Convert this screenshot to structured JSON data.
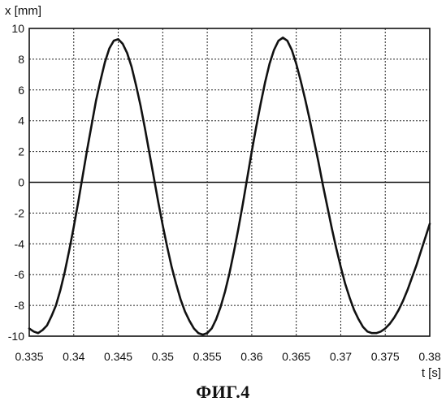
{
  "figure": {
    "caption": "ФИГ.4"
  },
  "chart_data": {
    "type": "line",
    "title": "",
    "xlabel": "t [s]",
    "ylabel": "x [mm]",
    "xlim": [
      0.335,
      0.38
    ],
    "ylim": [
      -10,
      10
    ],
    "grid": true,
    "x_ticks": [
      0.335,
      0.34,
      0.345,
      0.35,
      0.355,
      0.36,
      0.365,
      0.37,
      0.375,
      0.38
    ],
    "x_tick_labels": [
      "0.335",
      "0.34",
      "0.345",
      "0.35",
      "0.355",
      "0.36",
      "0.365",
      "0.37",
      "0.375",
      "0.38"
    ],
    "y_ticks": [
      10,
      8,
      6,
      4,
      2,
      0,
      -2,
      -4,
      -6,
      -8,
      -10
    ],
    "y_tick_labels": [
      "10",
      "8",
      "6",
      "4",
      "2",
      "0",
      "-2",
      "-4",
      "-6",
      "-8",
      "-10"
    ],
    "series": [
      {
        "x": [
          0.335,
          0.3355,
          0.336,
          0.3365,
          0.337,
          0.3375,
          0.338,
          0.3385,
          0.339,
          0.3395,
          0.34,
          0.3405,
          0.341,
          0.3415,
          0.342,
          0.3425,
          0.343,
          0.3435,
          0.344,
          0.3445,
          0.345,
          0.3455,
          0.346,
          0.3465,
          0.347,
          0.3475,
          0.348,
          0.3485,
          0.349,
          0.3495,
          0.35,
          0.3505,
          0.351,
          0.3515,
          0.352,
          0.3525,
          0.353,
          0.3535,
          0.354,
          0.3545,
          0.355,
          0.3555,
          0.356,
          0.3565,
          0.357,
          0.3575,
          0.358,
          0.3585,
          0.359,
          0.3595,
          0.36,
          0.3605,
          0.361,
          0.3615,
          0.362,
          0.3625,
          0.363,
          0.3635,
          0.364,
          0.3645,
          0.365,
          0.3655,
          0.366,
          0.3665,
          0.367,
          0.3675,
          0.368,
          0.3685,
          0.369,
          0.3695,
          0.37,
          0.3705,
          0.371,
          0.3715,
          0.372,
          0.3725,
          0.373,
          0.3735,
          0.374,
          0.3745,
          0.375,
          0.3755,
          0.376,
          0.3765,
          0.377,
          0.3775,
          0.378,
          0.3785,
          0.379,
          0.3795,
          0.38
        ],
        "y": [
          -9.5,
          -9.7,
          -9.8,
          -9.6,
          -9.3,
          -8.7,
          -8.0,
          -7.0,
          -5.8,
          -4.4,
          -2.9,
          -1.3,
          0.4,
          2.1,
          3.7,
          5.3,
          6.6,
          7.8,
          8.7,
          9.2,
          9.3,
          9.0,
          8.4,
          7.5,
          6.3,
          5.0,
          3.5,
          1.9,
          0.3,
          -1.3,
          -2.8,
          -4.2,
          -5.5,
          -6.6,
          -7.6,
          -8.4,
          -9.0,
          -9.5,
          -9.8,
          -9.9,
          -9.8,
          -9.5,
          -8.9,
          -8.1,
          -7.1,
          -5.9,
          -4.5,
          -3.0,
          -1.4,
          0.3,
          2.0,
          3.6,
          5.1,
          6.5,
          7.7,
          8.6,
          9.2,
          9.4,
          9.2,
          8.6,
          7.7,
          6.6,
          5.4,
          4.1,
          2.7,
          1.3,
          -0.2,
          -1.6,
          -3.0,
          -4.3,
          -5.5,
          -6.6,
          -7.5,
          -8.3,
          -8.9,
          -9.4,
          -9.7,
          -9.8,
          -9.8,
          -9.7,
          -9.5,
          -9.2,
          -8.8,
          -8.3,
          -7.7,
          -7.0,
          -6.2,
          -5.4,
          -4.5,
          -3.6,
          -2.7
        ]
      }
    ]
  }
}
